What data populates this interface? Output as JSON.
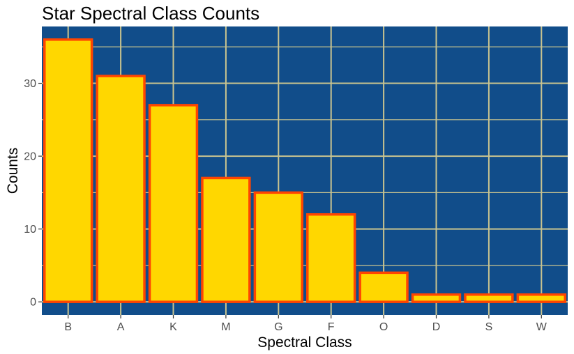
{
  "chart_data": {
    "type": "bar",
    "title": "Star Spectral Class Counts",
    "xlabel": "Spectral Class",
    "ylabel": "Counts",
    "categories": [
      "B",
      "A",
      "K",
      "M",
      "G",
      "F",
      "O",
      "D",
      "S",
      "W"
    ],
    "values": [
      36,
      31,
      27,
      17,
      15,
      12,
      4,
      1,
      1,
      1
    ],
    "ylim": [
      -1.8,
      37.8
    ],
    "yticks": [
      0,
      10,
      20,
      30
    ],
    "grid": true,
    "legend": "none"
  },
  "colors": {
    "panel_background": "#114d8a",
    "grid_line": "#c9c48f",
    "bar_fill": "#ffd700",
    "bar_outline": "#ff4500"
  }
}
